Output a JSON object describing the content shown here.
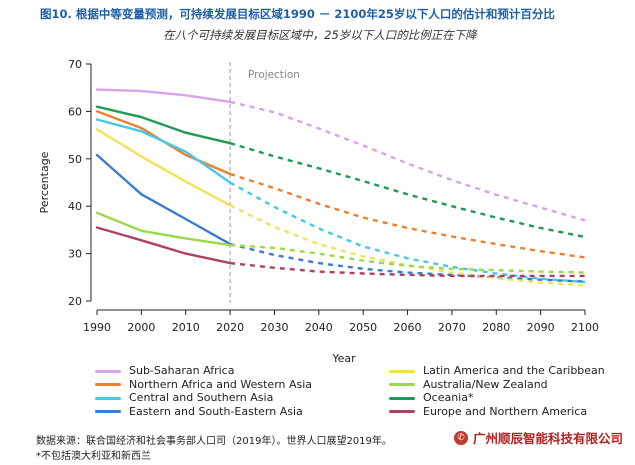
{
  "figure": {
    "title": "图10. 根据中等变量预测，可持续发展目标区域1990 － 2100年25岁以下人口的估计和预计百分比",
    "subtitle": "在八个可持续发展目标区域中，25岁以下人口的比例正在下降",
    "source": "数据来源：联合国经济和社会事务部人口司（2019年）。世界人口展望2019年。",
    "note": "*不包括澳大利亚和新西兰",
    "brand": "广州顺辰智能科技有限公司",
    "brand_icon": "wechat-icon"
  },
  "chart_data": {
    "type": "line",
    "title": "",
    "xlabel": "Year",
    "ylabel": "Percentage",
    "xlim": [
      1990,
      2100
    ],
    "ylim": [
      20,
      70
    ],
    "xticks": [
      "1990",
      "2000",
      "2010",
      "2020",
      "2030",
      "2040",
      "2050",
      "2060",
      "2070",
      "2080",
      "2090",
      "2100"
    ],
    "yticks": [
      "20",
      "30",
      "40",
      "50",
      "60",
      "70"
    ],
    "projection_label": "Projection",
    "projection_start": 2020,
    "x": [
      1990,
      2000,
      2010,
      2020,
      2030,
      2040,
      2050,
      2060,
      2070,
      2080,
      2090,
      2100
    ],
    "series": [
      {
        "name": "Sub-Saharan Africa",
        "color": "#d9a3e8",
        "values": [
          64.6,
          64.3,
          63.4,
          62.0,
          59.8,
          56.4,
          52.8,
          49.0,
          45.5,
          42.4,
          39.7,
          37.0
        ]
      },
      {
        "name": "Northern Africa and Western Asia",
        "color": "#ef7f2d",
        "values": [
          60.0,
          56.5,
          50.8,
          46.8,
          43.8,
          40.5,
          37.6,
          35.4,
          33.6,
          32.0,
          30.5,
          29.2
        ]
      },
      {
        "name": "Central and Southern Asia",
        "color": "#45c8ec",
        "values": [
          58.3,
          55.8,
          51.5,
          45.0,
          39.8,
          35.3,
          31.5,
          29.0,
          27.2,
          25.8,
          24.7,
          24.0
        ]
      },
      {
        "name": "Eastern and South-Eastern Asia",
        "color": "#3a7bd5",
        "values": [
          50.8,
          42.5,
          37.3,
          32.0,
          29.7,
          28.0,
          26.8,
          26.0,
          25.5,
          25.0,
          24.5,
          24.1
        ]
      },
      {
        "name": "Latin America and the Caribbean",
        "color": "#f0e355",
        "values": [
          56.2,
          50.5,
          45.2,
          40.2,
          35.6,
          32.0,
          29.4,
          27.6,
          26.0,
          24.8,
          23.9,
          23.3
        ]
      },
      {
        "name": "Australia/New Zealand",
        "color": "#9ad94a",
        "values": [
          38.6,
          34.8,
          33.2,
          31.8,
          31.2,
          30.0,
          28.5,
          27.4,
          26.8,
          26.5,
          26.2,
          26.0
        ]
      },
      {
        "name": "Oceania*",
        "color": "#1f9a53",
        "values": [
          61.0,
          58.8,
          55.5,
          53.3,
          50.5,
          48.0,
          45.3,
          42.5,
          40.0,
          37.6,
          35.4,
          33.5
        ]
      },
      {
        "name": "Europe and Northern America",
        "color": "#b0415c",
        "values": [
          35.5,
          32.8,
          30.0,
          28.0,
          27.0,
          26.2,
          25.8,
          25.5,
          25.3,
          25.3,
          25.3,
          25.3
        ]
      }
    ],
    "legend": {
      "placement": "bottom",
      "left_column": [
        "Sub-Saharan Africa",
        "Northern Africa and Western Asia",
        "Central and Southern Asia",
        "Eastern and South-Eastern Asia"
      ],
      "right_column": [
        "Latin America and the Caribbean",
        "Australia/New Zealand",
        "Oceania*",
        "Europe and Northern America"
      ]
    }
  }
}
